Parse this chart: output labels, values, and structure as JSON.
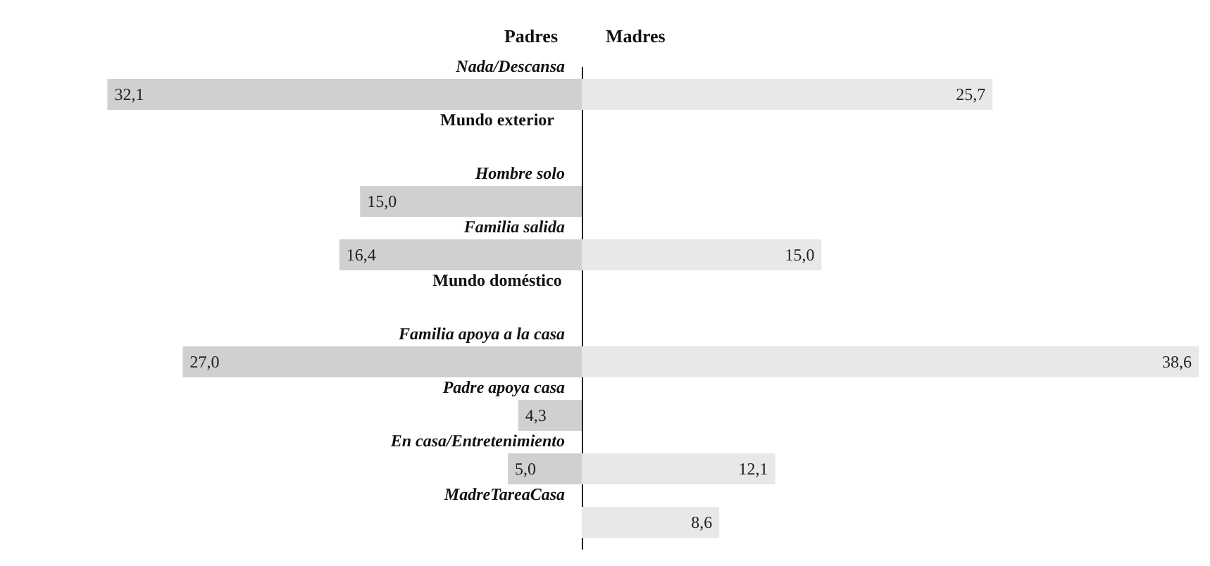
{
  "chart_data": [
    {
      "type": "bar",
      "orientation": "horizontal",
      "title": "Padres",
      "tick_labels": "y",
      "categories": [
        "Nada/Descansa",
        "Mundo exterior",
        "Hombre solo",
        "Familia salida",
        "Mundo doméstico",
        "Familia apoya a la casa",
        "Padre apoya casa",
        "En casa/Entretenimiento",
        "MadreTareaCasa"
      ],
      "series": [
        {
          "color": "#d0d0d0",
          "values": [
            32.1,
            null,
            15.0,
            16.4,
            null,
            27.0,
            4.3,
            5.0,
            null
          ],
          "value_labels": [
            "32,1",
            null,
            "15,0",
            "16,4",
            null,
            "27,0",
            "4,3",
            "5,0",
            null
          ]
        }
      ]
    },
    {
      "type": "bar",
      "orientation": "horizontal",
      "title": "Madres",
      "tick_labels": false,
      "series": [
        {
          "color": "#e8e8e8",
          "values": [
            25.7,
            null,
            null,
            15.0,
            null,
            38.6,
            null,
            12.1,
            8.6
          ],
          "value_labels": [
            "25,7",
            null,
            null,
            "15,0",
            null,
            "38,6",
            null,
            "12,1",
            "8,6"
          ]
        }
      ]
    }
  ]
}
